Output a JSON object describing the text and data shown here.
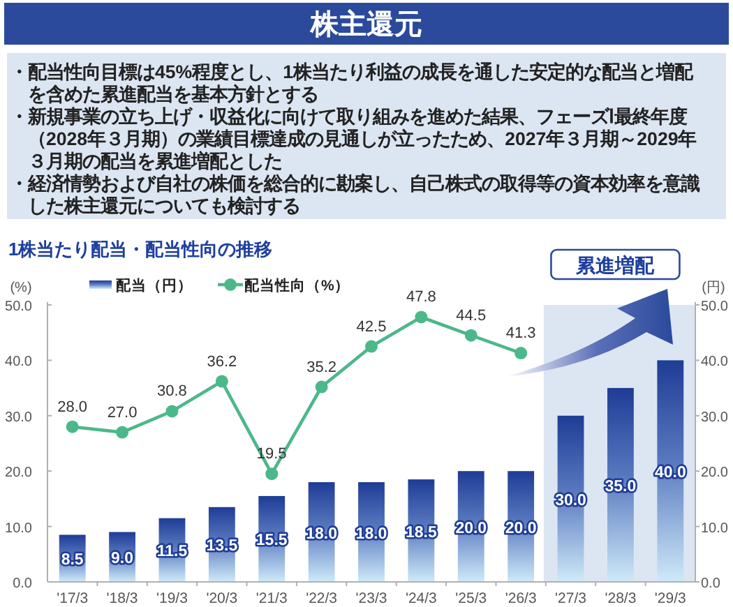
{
  "chart_data": {
    "type": "bar",
    "title": "株主還元",
    "subtitle": "1株当たり配当・配当性向の推移",
    "annotations": [
      "・配当性向目標は45%程度とし、1株当たり利益の成長を通した安定的な配当と増配を含めた累進配当を基本方針とする",
      "・新規事業の立ち上げ・収益化に向けて取り組みを進めた結果、フェーズⅠ最終年度（2028年３月期）の業績目標達成の見通しが立ったため、2027年３月期～2029年３月期の配当を累進増配とした",
      "・経済情勢および自社の株価を総合的に勘案し、自己株式の取得等の資本効率を意識した株主還元についても検討する"
    ],
    "ylabel": "(%)",
    "y2label": "(円)",
    "categories": [
      "'17/3",
      "'18/3",
      "'19/3",
      "'20/3",
      "'21/3",
      "'22/3",
      "'23/3",
      "'24/3",
      "'25/3",
      "'26/3",
      "'27/3",
      "'28/3",
      "'29/3"
    ],
    "series": [
      {
        "name": "配当（円）",
        "color": "#1f3c96",
        "values": [
          8.5,
          9.0,
          11.5,
          13.5,
          15.5,
          18.0,
          18.0,
          18.5,
          20.0,
          20.0,
          30.0,
          35.0,
          40.0
        ],
        "value_labels": [
          "8.5",
          "9.0",
          "11.5",
          "13.5",
          "15.5",
          "18.0",
          "18.0",
          "18.5",
          "20.0",
          "20.0",
          "30.0",
          "35.0",
          "40.0"
        ]
      },
      {
        "name": "配当性向（%）",
        "type": "line",
        "color": "#4cb88a",
        "values": [
          28.0,
          27.0,
          30.8,
          36.2,
          19.5,
          35.2,
          42.5,
          47.8,
          44.5,
          41.3,
          null,
          null,
          null
        ],
        "value_labels": [
          "28.0",
          "27.0",
          "30.8",
          "36.2",
          "19.5",
          "35.2",
          "42.5",
          "47.8",
          "44.5",
          "41.3",
          null,
          null,
          null
        ]
      }
    ],
    "ylim": [
      0,
      50
    ],
    "yticks": [
      {
        "value": 0,
        "label": "0.0"
      },
      {
        "value": 10,
        "label": "10.0"
      },
      {
        "value": 20,
        "label": "20.0"
      },
      {
        "value": 30,
        "label": "30.0"
      },
      {
        "value": 40,
        "label": "40.0"
      },
      {
        "value": 50,
        "label": "50.0"
      }
    ],
    "y2lim": [
      0,
      50
    ],
    "y2ticks": [
      {
        "value": 0,
        "label": "0.0"
      },
      {
        "value": 10,
        "label": "10.0"
      },
      {
        "value": 20,
        "label": "20.0"
      },
      {
        "value": 30,
        "label": "30.0"
      },
      {
        "value": 40,
        "label": "40.0"
      },
      {
        "value": 50,
        "label": "50.0"
      }
    ],
    "bands": [
      {
        "axis": "x",
        "from": "'27/3",
        "to": "'29/3",
        "label": "累進増配",
        "color": "#dce6f2"
      }
    ],
    "legend": "top left",
    "marker": "circle",
    "line_style": "solid"
  }
}
